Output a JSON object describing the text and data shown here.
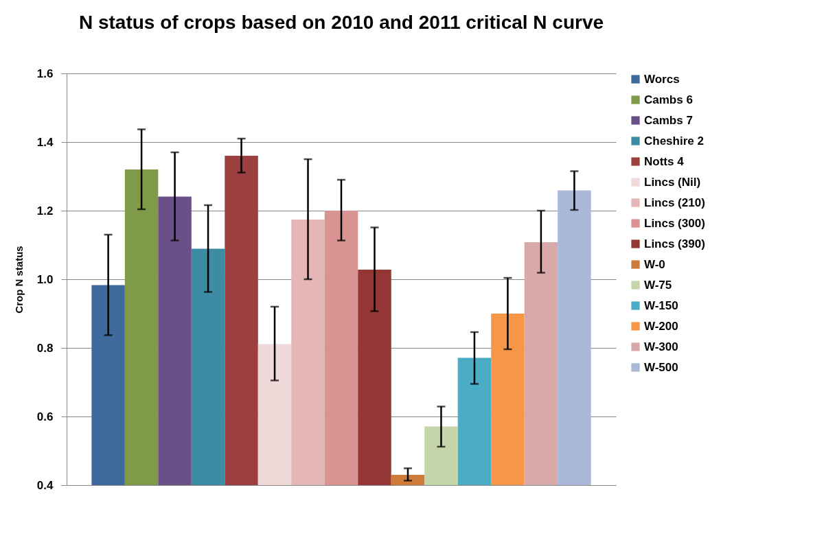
{
  "chart_data": {
    "type": "bar",
    "title": "N status of crops based on 2010 and 2011 critical N curve",
    "ylabel": "Crop N status",
    "categories": [
      null
    ],
    "series": [
      {
        "name": "Worcs",
        "color": "#416a9c",
        "values": [
          0.983
        ],
        "errors": [
          [
            0.837,
            1.13
          ]
        ]
      },
      {
        "name": "Cambs 6",
        "color": "#7f9a48",
        "values": [
          1.32
        ],
        "errors": [
          [
            1.204,
            1.437
          ]
        ]
      },
      {
        "name": "Cambs 7",
        "color": "#6a5087",
        "values": [
          1.241
        ],
        "errors": [
          [
            1.113,
            1.37
          ]
        ]
      },
      {
        "name": "Cheshire 2",
        "color": "#3d8ca4",
        "values": [
          1.089
        ],
        "errors": [
          [
            0.963,
            1.216
          ]
        ]
      },
      {
        "name": "Notts 4",
        "color": "#9b3f3f",
        "values": [
          1.36
        ],
        "errors": [
          [
            1.311,
            1.41
          ]
        ]
      },
      {
        "name": "Lincs (Nil)",
        "color": "#f0d9d9",
        "values": [
          0.811
        ],
        "errors": [
          [
            0.705,
            0.92
          ]
        ]
      },
      {
        "name": "Lincs (210)",
        "color": "#e5b6b6",
        "values": [
          1.174
        ],
        "errors": [
          [
            1.0,
            1.35
          ]
        ]
      },
      {
        "name": "Lincs (300)",
        "color": "#d99392",
        "values": [
          1.2
        ],
        "errors": [
          [
            1.113,
            1.29
          ]
        ]
      },
      {
        "name": "Lincs (390)",
        "color": "#943634",
        "values": [
          1.028
        ],
        "errors": [
          [
            0.907,
            1.151
          ]
        ]
      },
      {
        "name": "W-0",
        "color": "#cd7b3a",
        "values": [
          0.43
        ],
        "errors": [
          [
            0.413,
            0.449
          ]
        ]
      },
      {
        "name": "W-75",
        "color": "#c6d5aa",
        "values": [
          0.571
        ],
        "errors": [
          [
            0.512,
            0.629
          ]
        ]
      },
      {
        "name": "W-150",
        "color": "#4bacc6",
        "values": [
          0.771
        ],
        "errors": [
          [
            0.695,
            0.846
          ]
        ]
      },
      {
        "name": "W-200",
        "color": "#f79646",
        "values": [
          0.9
        ],
        "errors": [
          [
            0.796,
            1.004
          ]
        ]
      },
      {
        "name": "W-300",
        "color": "#d9a8a8",
        "values": [
          1.108
        ],
        "errors": [
          [
            1.019,
            1.2
          ]
        ]
      },
      {
        "name": "W-500",
        "color": "#aab9d7",
        "values": [
          1.259
        ],
        "errors": [
          [
            1.202,
            1.315
          ]
        ]
      }
    ],
    "ylim": [
      0.4,
      1.6
    ],
    "yticks": [
      0.4,
      0.6,
      0.8,
      {
        "value": 1,
        "label": "1.0"
      },
      1.2,
      1.4,
      1.6
    ],
    "grid": "y",
    "legend": "right"
  }
}
